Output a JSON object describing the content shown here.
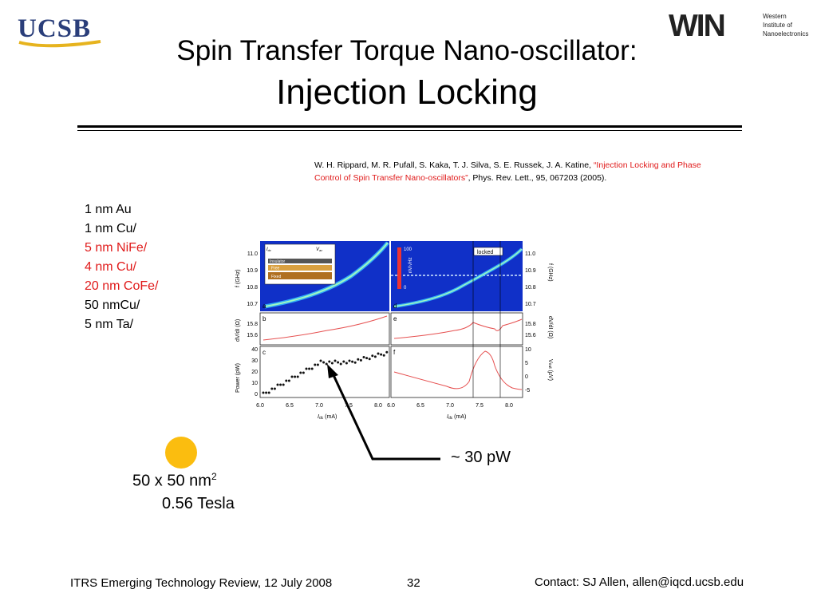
{
  "logos": {
    "ucsb": "UCSB",
    "win_mark": "WIN",
    "win_line1": "Western",
    "win_line2": "Institute of",
    "win_line3": "Nanoelectronics"
  },
  "title": {
    "line1": "Spin Transfer Torque Nano-oscillator:",
    "line2": "Injection Locking"
  },
  "citation": {
    "authors": "W. H. Rippard, M. R. Pufall, S. Kaka, T. J. Silva, S. E. Russek, J. A. Katine, ",
    "paper_title": "“Injection Locking and Phase Control of Spin Transfer Nano-oscillators”",
    "journal": ", Phys. Rev. Lett., 95, 067203 (2005)."
  },
  "stack": [
    {
      "text": "1 nm Au",
      "color": "#000000"
    },
    {
      "text": "1 nm Cu/",
      "color": "#000000"
    },
    {
      "text": "5 nm NiFe/",
      "color": "#e01a1a"
    },
    {
      "text": "4 nm Cu/",
      "color": "#e01a1a"
    },
    {
      "text": "20 nm CoFe/",
      "color": "#e01a1a"
    },
    {
      "text": "50 nmCu/",
      "color": "#000000"
    },
    {
      "text": "5 nm Ta/",
      "color": "#000000"
    }
  ],
  "figure": {
    "panel_a": "a",
    "panel_b": "b",
    "panel_c": "c",
    "panel_d": "d",
    "panel_e": "e",
    "panel_f": "f",
    "locked": "locked",
    "inset_idc": "I",
    "inset_idc_sub": "dc",
    "inset_vac": "V",
    "inset_vac_sub": "ac",
    "inset_insulator": "Insulator",
    "inset_free": "Free",
    "inset_fixed": "Fixed",
    "cb_100": "100",
    "cb_0": "0",
    "cb_unit": "nV/√Hz",
    "y_freq_label": "f (GHz)",
    "y_dvdi_label": "dV/dI (Ω)",
    "y_power_label": "Power (pW)",
    "y_vout_label": "V",
    "y_vout_sub": "out",
    "y_vout_unit": " (µV)",
    "freq_ticks_left": [
      "11.0",
      "10.9",
      "10.8",
      "10.7"
    ],
    "freq_ticks_right": [
      "11.0",
      "10.9",
      "10.8",
      "10.7"
    ],
    "dvdi_ticks_left": [
      "15.8",
      "15.6"
    ],
    "dvdi_ticks_right": [
      "15.8",
      "15.6"
    ],
    "power_ticks": [
      "40",
      "30",
      "20",
      "10",
      "0"
    ],
    "vout_ticks": [
      "10",
      "5",
      "0",
      "-5"
    ],
    "x_ticks": [
      "6.0",
      "6.5",
      "7.0",
      "7.5",
      "8.0"
    ],
    "x_label": "I",
    "x_label_sub": "dc",
    "x_label_unit": " (mA)"
  },
  "device": {
    "size": "50 x 50 nm",
    "size_sup": "2",
    "field": "0.56 Tesla",
    "dot_color": "#fbbd0f"
  },
  "annotation": {
    "power": "~ 30 pW"
  },
  "footer": {
    "left": "ITRS Emerging Technology Review, 12 July 2008",
    "page": "32",
    "contact": "Contact: SJ Allen, allen@iqcd.ucsb.edu"
  }
}
